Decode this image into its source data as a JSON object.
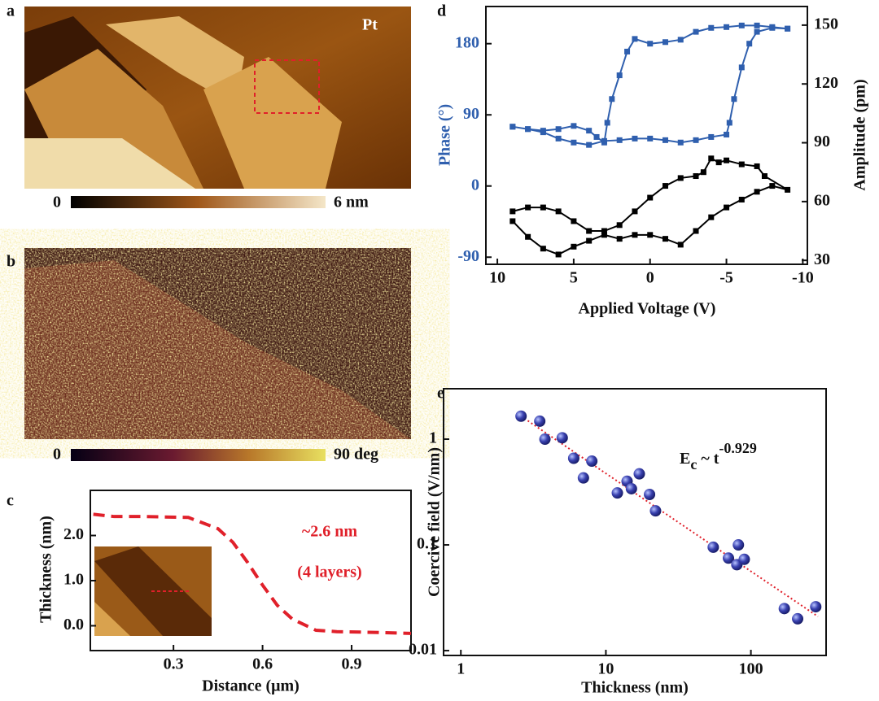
{
  "images": [
    {
      "panel": "a",
      "label": "Pt",
      "colorbar": [
        "0",
        "6 nm"
      ]
    },
    {
      "panel": "b",
      "colorbar": [
        "0",
        "90 deg"
      ]
    }
  ],
  "chart_data": [
    {
      "type": "line",
      "panel": "c",
      "xlabel": "Distance (μm)",
      "ylabel": "Thickness (nm)",
      "x": [
        0.03,
        0.1,
        0.2,
        0.35,
        0.45,
        0.5,
        0.55,
        0.6,
        0.65,
        0.7,
        0.78,
        0.85,
        1.0,
        1.1
      ],
      "values": [
        2.47,
        2.42,
        2.42,
        2.4,
        2.15,
        1.85,
        1.4,
        0.9,
        0.45,
        0.15,
        -0.1,
        -0.13,
        -0.15,
        -0.17
      ],
      "color": "#e0202a",
      "dashed": true,
      "xlim": [
        0.02,
        1.1
      ],
      "xticks": [
        0.3,
        0.6,
        0.9
      ],
      "ylim": [
        -0.55,
        3.0
      ],
      "yticks": [
        {
          "value": 0,
          "label": "0.0"
        },
        {
          "value": 1,
          "label": "1.0"
        },
        {
          "value": 2,
          "label": "2.0"
        }
      ],
      "annotations": [
        "~2.6 nm",
        "(4 layers)"
      ]
    },
    {
      "type": "line",
      "panel": "d",
      "xlabel": "Applied Voltage (V)",
      "ylabel": "Phase (°)",
      "y2label": "Amplitude (pm)",
      "ycolor": "#2f5fae",
      "marker": "square",
      "xlim": [
        10.75,
        -10.3
      ],
      "xticks": [
        10,
        5,
        0,
        -5,
        -10
      ],
      "ylim": [
        -99,
        227
      ],
      "yticks": [
        -90,
        0,
        90,
        180
      ],
      "y2lim": [
        28,
        159.5
      ],
      "y2ticks": [
        30,
        60,
        90,
        120,
        150
      ],
      "series": [
        {
          "color": "#2f5fae",
          "x": [
            9,
            8,
            7,
            6,
            5,
            4,
            3.5,
            3,
            2.8,
            2.5,
            2,
            1.5,
            1,
            0,
            -1,
            -2,
            -3,
            -4,
            -5,
            -6,
            -7,
            -8,
            -9,
            -9,
            -8,
            -7,
            -6.5,
            -6,
            -5.5,
            -5.2,
            -5,
            -4,
            -3,
            -2,
            -1,
            0,
            1,
            2,
            3,
            4,
            5,
            6,
            7,
            8,
            9
          ],
          "values": [
            75,
            72,
            70,
            72,
            76,
            70,
            62,
            55,
            80,
            110,
            140,
            170,
            186,
            180,
            182,
            185,
            195,
            200,
            201,
            203,
            203,
            201,
            199,
            199,
            200,
            195,
            180,
            150,
            110,
            80,
            65,
            62,
            58,
            55,
            58,
            60,
            60,
            58,
            57,
            52,
            55,
            60,
            68,
            72,
            75
          ]
        },
        {
          "color": "#000000",
          "axis": "y2",
          "x": [
            9,
            8,
            7,
            6,
            5,
            4,
            3,
            2,
            1,
            0,
            -1,
            -2,
            -3,
            -3.5,
            -4,
            -4.5,
            -5,
            -6,
            -7,
            -7.5,
            -9,
            -8,
            -7,
            -6,
            -5,
            -4,
            -3,
            -2,
            -1,
            0,
            1,
            2,
            3,
            4,
            5,
            6,
            7,
            8,
            9
          ],
          "values": [
            55,
            57,
            57,
            55,
            50,
            45,
            45,
            48,
            55,
            62,
            68,
            72,
            73,
            75,
            82,
            80,
            81,
            79,
            78,
            73,
            66,
            68,
            65,
            61,
            57,
            52,
            45,
            38,
            41,
            43,
            43,
            41,
            43,
            40,
            37,
            33,
            36,
            42,
            50
          ]
        }
      ]
    },
    {
      "type": "scatter",
      "panel": "e",
      "xlabel": "Thickness (nm)",
      "ylabel": "Coercive field (V/nm)",
      "xlog": true,
      "ylog": true,
      "xlim": [
        0.76,
        330
      ],
      "xticks": [
        1,
        10,
        100
      ],
      "ylim": [
        0.009,
        3.0
      ],
      "yticks": [
        0.01,
        0.1,
        1
      ],
      "color": "#2a2f9a",
      "x": [
        2.6,
        3.5,
        3.8,
        5,
        6,
        7,
        8,
        12,
        14,
        15,
        17,
        20,
        22,
        55,
        70,
        80,
        82,
        90,
        170,
        210,
        280
      ],
      "values": [
        1.65,
        1.48,
        1.0,
        1.03,
        0.66,
        0.43,
        0.62,
        0.31,
        0.4,
        0.34,
        0.47,
        0.3,
        0.21,
        0.095,
        0.075,
        0.065,
        0.1,
        0.073,
        0.025,
        0.02,
        0.026
      ],
      "fit": {
        "x": [
          2.6,
          290
        ],
        "values": [
          1.65,
          0.021
        ],
        "color": "#e0202a"
      },
      "annotation": {
        "base": "E",
        "sub": "c",
        "mid": " ~ t",
        "sup": "-0.929"
      }
    }
  ]
}
